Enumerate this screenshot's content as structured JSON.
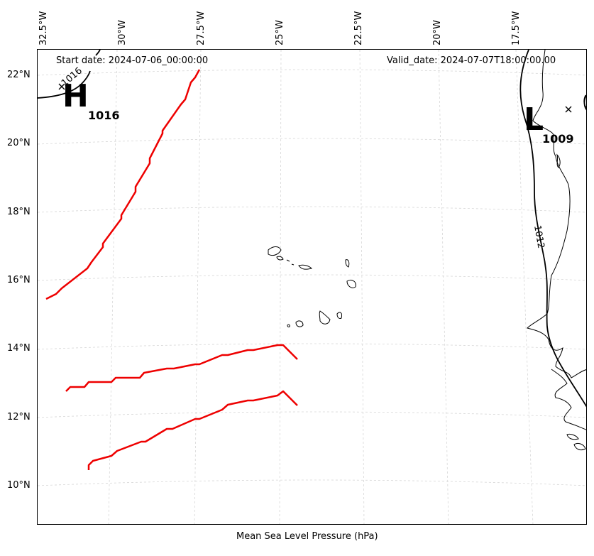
{
  "header": {
    "start_date": "Start date: 2024-07-06_00:00:00",
    "valid_date": "Valid_date: 2024-07-07T18:00:00.00"
  },
  "footer": {
    "caption": "Mean Sea Level Pressure (hPa)"
  },
  "lon_ticks": [
    "32.5°W",
    "30°W",
    "27.5°W",
    "25°W",
    "22.5°W",
    "20°W",
    "17.5°W"
  ],
  "lat_ticks": [
    "22°N",
    "20°N",
    "18°N",
    "16°N",
    "14°N",
    "12°N",
    "10°N"
  ],
  "pressure_centers": [
    {
      "kind": "H",
      "value": "1016"
    },
    {
      "kind": "L",
      "value": "1009"
    }
  ],
  "isobar_labels": [
    "1016",
    "1012"
  ],
  "colors": {
    "tracks": "#ee0000",
    "isobar": "#000000",
    "coast": "#000000",
    "grid": "#d0d0d0"
  }
}
